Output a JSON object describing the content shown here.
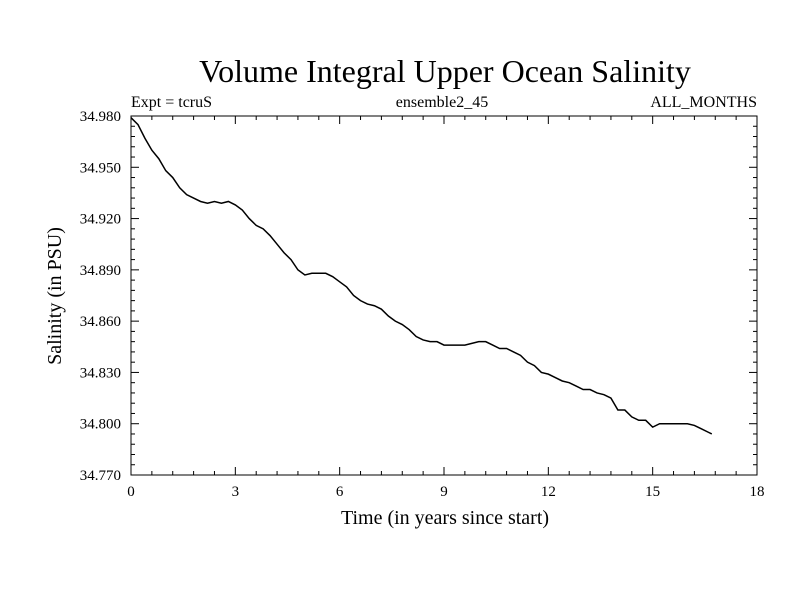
{
  "chart_data": {
    "type": "line",
    "title": "Volume Integral Upper Ocean Salinity",
    "subtitle_left": "Expt = tcruS",
    "subtitle_center": "ensemble2_45",
    "subtitle_right": "ALL_MONTHS",
    "xlabel": "Time (in years since start)",
    "ylabel": "Salinity (in PSU)",
    "xlim": [
      0,
      18
    ],
    "ylim": [
      34.77,
      34.98
    ],
    "xticks": [
      0,
      3,
      6,
      9,
      12,
      15,
      18
    ],
    "yticks": [
      34.77,
      34.8,
      34.83,
      34.86,
      34.89,
      34.92,
      34.95,
      34.98
    ],
    "xtick_labels": [
      "0",
      "3",
      "6",
      "9",
      "12",
      "15",
      "18"
    ],
    "ytick_labels": [
      "34.770",
      "34.800",
      "34.830",
      "34.860",
      "34.890",
      "34.920",
      "34.950",
      "34.980"
    ],
    "grid": false,
    "line_color": "#000000",
    "series": [
      {
        "x": [
          0.0,
          0.2,
          0.4,
          0.6,
          0.8,
          1.0,
          1.2,
          1.4,
          1.6,
          1.8,
          2.0,
          2.2,
          2.4,
          2.6,
          2.8,
          3.0,
          3.2,
          3.4,
          3.6,
          3.8,
          4.0,
          4.2,
          4.4,
          4.6,
          4.8,
          5.0,
          5.2,
          5.4,
          5.6,
          5.8,
          6.0,
          6.2,
          6.4,
          6.6,
          6.8,
          7.0,
          7.2,
          7.4,
          7.6,
          7.8,
          8.0,
          8.2,
          8.4,
          8.6,
          8.8,
          9.0,
          9.2,
          9.4,
          9.6,
          9.8,
          10.0,
          10.2,
          10.4,
          10.6,
          10.8,
          11.0,
          11.2,
          11.4,
          11.6,
          11.8,
          12.0,
          12.2,
          12.4,
          12.6,
          12.8,
          13.0,
          13.2,
          13.4,
          13.6,
          13.8,
          14.0,
          14.2,
          14.4,
          14.6,
          14.8,
          15.0,
          15.2,
          15.4,
          15.6,
          15.8,
          16.0,
          16.2,
          16.4,
          16.6,
          16.7
        ],
        "y": [
          34.979,
          34.975,
          34.967,
          34.96,
          34.955,
          34.948,
          34.944,
          34.938,
          34.934,
          34.932,
          34.93,
          34.929,
          34.93,
          34.929,
          34.93,
          34.928,
          34.925,
          34.92,
          34.916,
          34.914,
          34.91,
          34.905,
          34.9,
          34.896,
          34.89,
          34.887,
          34.888,
          34.888,
          34.888,
          34.886,
          34.883,
          34.88,
          34.875,
          34.872,
          34.87,
          34.869,
          34.867,
          34.863,
          34.86,
          34.858,
          34.855,
          34.851,
          34.849,
          34.848,
          34.848,
          34.846,
          34.846,
          34.846,
          34.846,
          34.847,
          34.848,
          34.848,
          34.846,
          34.844,
          34.844,
          34.842,
          34.84,
          34.836,
          34.834,
          34.83,
          34.829,
          34.827,
          34.825,
          34.824,
          34.822,
          34.82,
          34.82,
          34.818,
          34.817,
          34.815,
          34.808,
          34.808,
          34.804,
          34.802,
          34.802,
          34.798,
          34.8,
          34.8,
          34.8,
          34.8,
          34.8,
          34.799,
          34.797,
          34.795,
          34.794
        ]
      }
    ]
  }
}
